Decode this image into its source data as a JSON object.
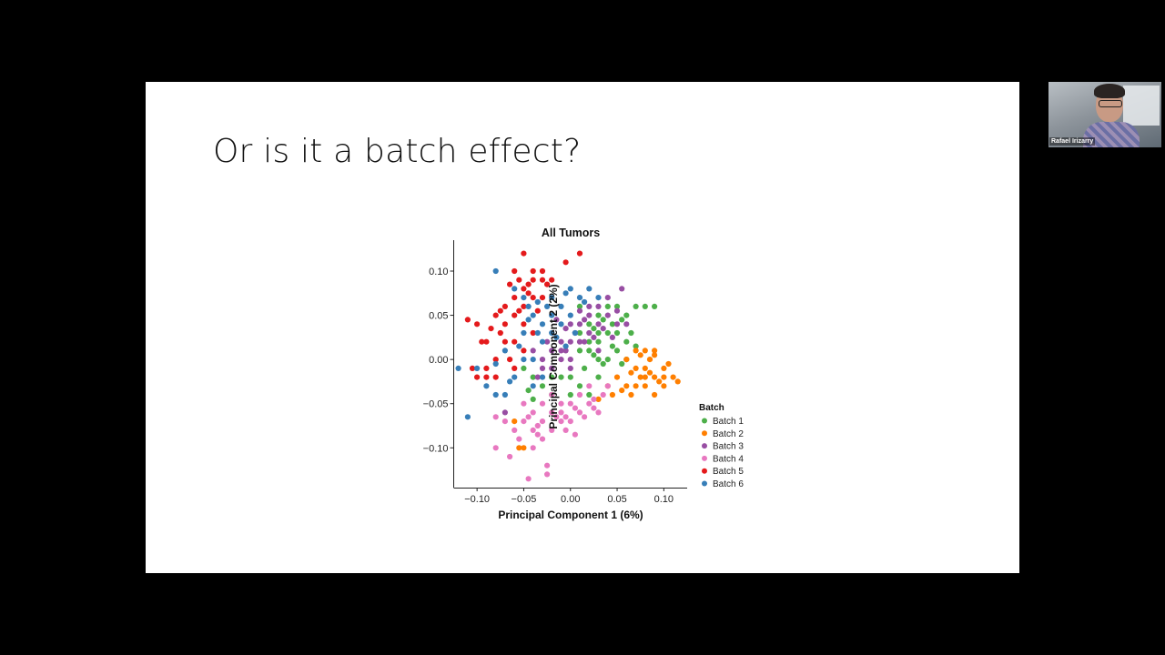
{
  "slide": {
    "title": "Or is it a batch effect?"
  },
  "video": {
    "participant_name": "Rafael Irizarry"
  },
  "chart_data": {
    "type": "scatter",
    "title": "All Tumors",
    "xlabel": "Principal Component 1 (6%)",
    "ylabel": "Principal Component 2 (2%)",
    "xlim": [
      -0.125,
      0.125
    ],
    "ylim": [
      -0.145,
      0.135
    ],
    "xticks": [
      -0.1,
      -0.05,
      0.0,
      0.05,
      0.1
    ],
    "xtick_labels": [
      "−0.10",
      "−0.05",
      "0.00",
      "0.05",
      "0.10"
    ],
    "yticks": [
      0.1,
      0.05,
      0.0,
      -0.05,
      -0.1
    ],
    "ytick_labels": [
      "0.10",
      "0.05",
      "0.00",
      "−0.05",
      "−0.10"
    ],
    "grid": false,
    "legend": {
      "title": "Batch",
      "placement": "right"
    },
    "series": [
      {
        "name": "Batch 1",
        "color": "#4daf4a",
        "points": [
          [
            0.01,
            0.06
          ],
          [
            0.02,
            0.04
          ],
          [
            0.03,
            0.05
          ],
          [
            0.04,
            0.06
          ],
          [
            0.05,
            0.06
          ],
          [
            0.06,
            0.05
          ],
          [
            0.07,
            0.06
          ],
          [
            0.08,
            0.06
          ],
          [
            0.09,
            0.06
          ],
          [
            0.02,
            0.02
          ],
          [
            0.03,
            0.02
          ],
          [
            0.04,
            0.03
          ],
          [
            0.05,
            0.03
          ],
          [
            0.06,
            0.02
          ],
          [
            0.01,
            0.01
          ],
          [
            0.02,
            0.01
          ],
          [
            0.03,
            0.0
          ],
          [
            0.04,
            0.0
          ],
          [
            0.05,
            0.01
          ],
          [
            0.06,
            0.0
          ],
          [
            0.015,
            -0.01
          ],
          [
            0.025,
            0.005
          ],
          [
            0.035,
            -0.005
          ],
          [
            0.0,
            -0.02
          ],
          [
            -0.01,
            -0.02
          ],
          [
            -0.02,
            -0.02
          ],
          [
            -0.03,
            -0.03
          ],
          [
            -0.04,
            -0.02
          ],
          [
            -0.045,
            -0.035
          ],
          [
            -0.05,
            -0.01
          ],
          [
            -0.04,
            -0.045
          ],
          [
            -0.02,
            -0.04
          ],
          [
            0.0,
            -0.04
          ],
          [
            0.01,
            -0.03
          ],
          [
            0.02,
            -0.04
          ],
          [
            0.03,
            -0.02
          ],
          [
            0.045,
            0.04
          ],
          [
            0.055,
            0.045
          ],
          [
            0.065,
            0.03
          ],
          [
            0.07,
            0.015
          ],
          [
            0.025,
            0.035
          ],
          [
            0.01,
            0.03
          ],
          [
            0.035,
            0.045
          ],
          [
            0.045,
            0.015
          ],
          [
            0.055,
            -0.005
          ],
          [
            0.03,
            0.03
          ]
        ]
      },
      {
        "name": "Batch 2",
        "color": "#ff7f00",
        "points": [
          [
            0.06,
            0.0
          ],
          [
            0.07,
            -0.01
          ],
          [
            0.08,
            -0.01
          ],
          [
            0.09,
            -0.02
          ],
          [
            0.1,
            -0.01
          ],
          [
            0.11,
            -0.02
          ],
          [
            0.08,
            0.01
          ],
          [
            0.09,
            0.005
          ],
          [
            0.1,
            -0.03
          ],
          [
            0.07,
            -0.03
          ],
          [
            0.06,
            -0.03
          ],
          [
            0.08,
            -0.03
          ],
          [
            0.09,
            -0.04
          ],
          [
            0.05,
            -0.02
          ],
          [
            0.04,
            -0.03
          ],
          [
            0.085,
            -0.015
          ],
          [
            0.095,
            -0.025
          ],
          [
            0.075,
            -0.02
          ],
          [
            0.065,
            -0.015
          ],
          [
            0.075,
            0.005
          ],
          [
            0.085,
            0.0
          ],
          [
            0.105,
            -0.005
          ],
          [
            0.115,
            -0.025
          ],
          [
            0.055,
            -0.035
          ],
          [
            0.045,
            -0.04
          ],
          [
            0.065,
            -0.04
          ],
          [
            0.07,
            0.01
          ],
          [
            0.09,
            0.01
          ],
          [
            0.1,
            -0.02
          ],
          [
            0.08,
            -0.02
          ],
          [
            0.03,
            -0.045
          ],
          [
            -0.06,
            -0.07
          ],
          [
            -0.05,
            -0.1
          ],
          [
            -0.055,
            -0.1
          ]
        ]
      },
      {
        "name": "Batch 3",
        "color": "#984ea3",
        "points": [
          [
            0.0,
            0.04
          ],
          [
            0.01,
            0.04
          ],
          [
            0.02,
            0.05
          ],
          [
            0.03,
            0.06
          ],
          [
            0.04,
            0.05
          ],
          [
            0.05,
            0.04
          ],
          [
            0.055,
            0.08
          ],
          [
            0.04,
            0.07
          ],
          [
            0.03,
            0.04
          ],
          [
            0.02,
            0.03
          ],
          [
            0.01,
            0.02
          ],
          [
            0.0,
            0.02
          ],
          [
            -0.01,
            0.02
          ],
          [
            -0.02,
            0.01
          ],
          [
            -0.03,
            0.0
          ],
          [
            -0.01,
            0.0
          ],
          [
            0.0,
            -0.01
          ],
          [
            -0.02,
            -0.01
          ],
          [
            -0.03,
            -0.01
          ],
          [
            -0.04,
            0.01
          ],
          [
            0.035,
            0.035
          ],
          [
            0.025,
            0.025
          ],
          [
            0.015,
            0.045
          ],
          [
            0.005,
            0.03
          ],
          [
            -0.005,
            0.035
          ],
          [
            0.045,
            0.025
          ],
          [
            -0.015,
            0.045
          ],
          [
            0.06,
            0.04
          ],
          [
            0.05,
            0.055
          ],
          [
            -0.01,
            0.01
          ],
          [
            0.0,
            0.0
          ],
          [
            -0.025,
            0.02
          ],
          [
            -0.035,
            -0.02
          ],
          [
            -0.07,
            -0.06
          ],
          [
            0.02,
            0.06
          ],
          [
            0.01,
            0.055
          ],
          [
            -0.005,
            0.01
          ],
          [
            0.015,
            0.02
          ],
          [
            0.03,
            0.01
          ]
        ]
      },
      {
        "name": "Batch 4",
        "color": "#e878c0",
        "points": [
          [
            -0.01,
            -0.06
          ],
          [
            -0.02,
            -0.06
          ],
          [
            -0.03,
            -0.07
          ],
          [
            -0.04,
            -0.08
          ],
          [
            -0.05,
            -0.07
          ],
          [
            -0.06,
            -0.08
          ],
          [
            -0.03,
            -0.09
          ],
          [
            -0.04,
            -0.1
          ],
          [
            -0.02,
            -0.08
          ],
          [
            -0.01,
            -0.07
          ],
          [
            0.0,
            -0.07
          ],
          [
            0.01,
            -0.06
          ],
          [
            0.02,
            -0.05
          ],
          [
            0.03,
            -0.06
          ],
          [
            0.02,
            -0.03
          ],
          [
            0.01,
            -0.04
          ],
          [
            0.0,
            -0.05
          ],
          [
            -0.01,
            -0.05
          ],
          [
            -0.02,
            -0.04
          ],
          [
            -0.03,
            -0.05
          ],
          [
            -0.04,
            -0.06
          ],
          [
            -0.05,
            -0.05
          ],
          [
            -0.07,
            -0.07
          ],
          [
            -0.08,
            -0.065
          ],
          [
            -0.08,
            -0.1
          ],
          [
            -0.065,
            -0.11
          ],
          [
            -0.045,
            -0.135
          ],
          [
            -0.025,
            -0.13
          ],
          [
            -0.025,
            -0.12
          ],
          [
            -0.005,
            -0.08
          ],
          [
            0.005,
            -0.085
          ],
          [
            -0.015,
            -0.065
          ],
          [
            -0.035,
            -0.075
          ],
          [
            0.025,
            -0.055
          ],
          [
            0.035,
            -0.04
          ],
          [
            0.04,
            -0.03
          ],
          [
            0.005,
            -0.055
          ],
          [
            -0.055,
            -0.09
          ],
          [
            -0.035,
            -0.085
          ],
          [
            0.015,
            -0.065
          ],
          [
            -0.005,
            -0.065
          ],
          [
            -0.045,
            -0.065
          ],
          [
            0.025,
            -0.045
          ]
        ]
      },
      {
        "name": "Batch 5",
        "color": "#e41a1c",
        "points": [
          [
            -0.05,
            0.12
          ],
          [
            -0.04,
            0.1
          ],
          [
            -0.03,
            0.09
          ],
          [
            -0.02,
            0.09
          ],
          [
            -0.03,
            0.1
          ],
          [
            -0.06,
            0.1
          ],
          [
            -0.05,
            0.08
          ],
          [
            -0.06,
            0.07
          ],
          [
            -0.07,
            0.06
          ],
          [
            -0.08,
            0.05
          ],
          [
            -0.07,
            0.04
          ],
          [
            -0.06,
            0.05
          ],
          [
            -0.05,
            0.06
          ],
          [
            -0.04,
            0.07
          ],
          [
            -0.05,
            0.04
          ],
          [
            -0.06,
            0.02
          ],
          [
            -0.07,
            0.02
          ],
          [
            -0.08,
            0.0
          ],
          [
            -0.09,
            -0.01
          ],
          [
            -0.1,
            -0.02
          ],
          [
            -0.09,
            -0.02
          ],
          [
            -0.1,
            0.04
          ],
          [
            -0.11,
            0.045
          ],
          [
            -0.09,
            0.02
          ],
          [
            -0.08,
            -0.02
          ],
          [
            -0.06,
            -0.01
          ],
          [
            -0.05,
            0.01
          ],
          [
            -0.04,
            0.03
          ],
          [
            -0.03,
            0.07
          ],
          [
            -0.04,
            0.09
          ],
          [
            -0.055,
            0.09
          ],
          [
            -0.065,
            0.085
          ],
          [
            0.01,
            0.12
          ],
          [
            -0.005,
            0.11
          ],
          [
            -0.045,
            0.075
          ],
          [
            -0.035,
            0.055
          ],
          [
            -0.075,
            0.055
          ],
          [
            -0.085,
            0.035
          ],
          [
            -0.065,
            0.0
          ],
          [
            -0.095,
            0.02
          ],
          [
            -0.105,
            -0.01
          ],
          [
            -0.075,
            0.03
          ],
          [
            -0.025,
            0.085
          ],
          [
            -0.045,
            0.085
          ],
          [
            -0.055,
            0.055
          ]
        ]
      },
      {
        "name": "Batch 6",
        "color": "#377eb8",
        "points": [
          [
            -0.08,
            0.1
          ],
          [
            -0.06,
            0.08
          ],
          [
            -0.05,
            0.07
          ],
          [
            -0.04,
            0.05
          ],
          [
            -0.03,
            0.04
          ],
          [
            -0.02,
            0.05
          ],
          [
            -0.01,
            0.06
          ],
          [
            0.0,
            0.08
          ],
          [
            0.02,
            0.08
          ],
          [
            0.01,
            0.07
          ],
          [
            0.0,
            0.05
          ],
          [
            -0.01,
            0.04
          ],
          [
            -0.02,
            0.03
          ],
          [
            -0.03,
            0.02
          ],
          [
            -0.04,
            0.0
          ],
          [
            -0.05,
            0.0
          ],
          [
            -0.06,
            -0.02
          ],
          [
            -0.07,
            -0.04
          ],
          [
            -0.08,
            -0.04
          ],
          [
            -0.09,
            -0.03
          ],
          [
            -0.1,
            -0.01
          ],
          [
            -0.11,
            -0.065
          ],
          [
            -0.12,
            -0.01
          ],
          [
            -0.08,
            -0.005
          ],
          [
            -0.07,
            0.01
          ],
          [
            -0.05,
            0.03
          ],
          [
            -0.035,
            0.065
          ],
          [
            -0.025,
            0.06
          ],
          [
            -0.015,
            0.025
          ],
          [
            -0.005,
            0.015
          ],
          [
            0.005,
            0.03
          ],
          [
            0.015,
            0.065
          ],
          [
            -0.045,
            0.045
          ],
          [
            -0.055,
            0.015
          ],
          [
            -0.065,
            -0.025
          ],
          [
            -0.03,
            -0.02
          ],
          [
            -0.04,
            -0.03
          ],
          [
            0.03,
            0.07
          ],
          [
            -0.02,
            0.07
          ],
          [
            -0.005,
            0.075
          ],
          [
            -0.035,
            0.03
          ],
          [
            -0.045,
            0.06
          ]
        ]
      }
    ]
  }
}
